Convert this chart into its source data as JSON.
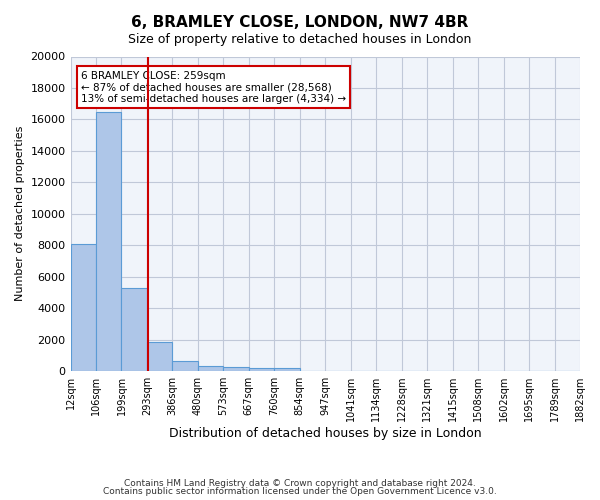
{
  "title": "6, BRAMLEY CLOSE, LONDON, NW7 4BR",
  "subtitle": "Size of property relative to detached houses in London",
  "xlabel": "Distribution of detached houses by size in London",
  "ylabel": "Number of detached properties",
  "bar_color": "#aec6e8",
  "bar_edge_color": "#5b9bd5",
  "grid_color": "#c0c8d8",
  "background_color": "#f0f4fa",
  "bin_labels": [
    "12sqm",
    "106sqm",
    "199sqm",
    "293sqm",
    "386sqm",
    "480sqm",
    "573sqm",
    "667sqm",
    "760sqm",
    "854sqm",
    "947sqm",
    "1041sqm",
    "1134sqm",
    "1228sqm",
    "1321sqm",
    "1415sqm",
    "1508sqm",
    "1602sqm",
    "1695sqm",
    "1789sqm",
    "1882sqm"
  ],
  "bar_values": [
    8100,
    16500,
    5300,
    1850,
    650,
    350,
    280,
    200,
    190,
    0,
    0,
    0,
    0,
    0,
    0,
    0,
    0,
    0,
    0,
    0
  ],
  "property_bin_index": 2.55,
  "annotation_text": "6 BRAMLEY CLOSE: 259sqm\n← 87% of detached houses are smaller (28,568)\n13% of semi-detached houses are larger (4,334) →",
  "red_line_color": "#cc0000",
  "annotation_box_edge_color": "#cc0000",
  "annotation_box_face_color": "#ffffff",
  "ylim": [
    0,
    20000
  ],
  "yticks": [
    0,
    2000,
    4000,
    6000,
    8000,
    10000,
    12000,
    14000,
    16000,
    18000,
    20000
  ],
  "footnote1": "Contains HM Land Registry data © Crown copyright and database right 2024.",
  "footnote2": "Contains public sector information licensed under the Open Government Licence v3.0."
}
